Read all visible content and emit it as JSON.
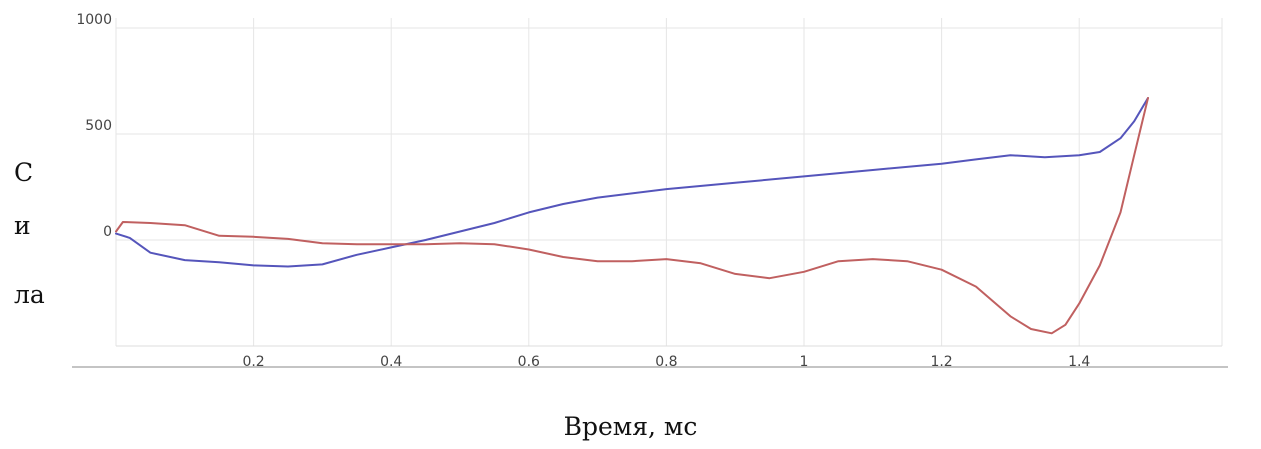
{
  "chart_data": {
    "type": "line",
    "title": "",
    "xlabel": "Время, мс",
    "ylabel_lines": [
      "С",
      "и",
      "ла"
    ],
    "xlim": [
      0,
      1.6
    ],
    "ylim": [
      -500,
      1000
    ],
    "xticks": [
      0.2,
      0.4,
      0.6,
      0.8,
      1,
      1.2,
      1.4
    ],
    "xtick_labels": [
      "0.2",
      "0.4",
      "0.6",
      "0.8",
      "1",
      "1.2",
      "1.4"
    ],
    "yticks": [
      0,
      500,
      1000
    ],
    "ytick_labels": [
      "0",
      "500",
      "1000"
    ],
    "grid": true,
    "series": [
      {
        "color": "#5555bb",
        "x": [
          0,
          0.02,
          0.05,
          0.1,
          0.15,
          0.2,
          0.25,
          0.3,
          0.35,
          0.4,
          0.45,
          0.5,
          0.55,
          0.6,
          0.65,
          0.7,
          0.8,
          0.9,
          1.0,
          1.1,
          1.2,
          1.25,
          1.3,
          1.35,
          1.4,
          1.43,
          1.46,
          1.48,
          1.5
        ],
        "y": [
          30,
          10,
          -60,
          -95,
          -105,
          -120,
          -125,
          -115,
          -70,
          -35,
          0,
          40,
          80,
          130,
          170,
          200,
          240,
          270,
          300,
          330,
          360,
          380,
          400,
          390,
          400,
          415,
          480,
          560,
          670
        ]
      },
      {
        "color": "#c06060",
        "x": [
          0,
          0.01,
          0.05,
          0.1,
          0.15,
          0.2,
          0.25,
          0.3,
          0.35,
          0.4,
          0.45,
          0.5,
          0.55,
          0.6,
          0.65,
          0.7,
          0.75,
          0.8,
          0.85,
          0.9,
          0.95,
          1.0,
          1.05,
          1.1,
          1.15,
          1.2,
          1.25,
          1.3,
          1.33,
          1.36,
          1.38,
          1.4,
          1.43,
          1.46,
          1.48,
          1.5
        ],
        "y": [
          40,
          85,
          80,
          70,
          20,
          15,
          5,
          -15,
          -20,
          -20,
          -20,
          -15,
          -20,
          -45,
          -80,
          -100,
          -100,
          -90,
          -110,
          -160,
          -180,
          -150,
          -100,
          -90,
          -100,
          -140,
          -220,
          -360,
          -420,
          -440,
          -400,
          -300,
          -120,
          130,
          400,
          670
        ]
      }
    ]
  }
}
